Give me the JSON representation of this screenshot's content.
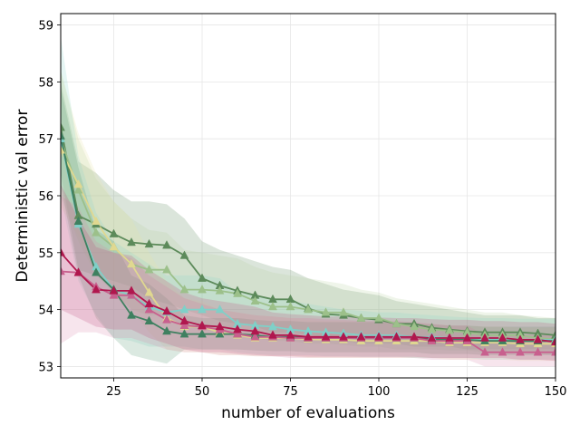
{
  "chart_data": {
    "type": "line",
    "xlabel": "number of evaluations",
    "ylabel": "Deterministic val error",
    "xlim": [
      10,
      150
    ],
    "ylim": [
      52.8,
      59.2
    ],
    "xticks": [
      25,
      50,
      75,
      100,
      125,
      150
    ],
    "yticks": [
      53,
      54,
      55,
      56,
      57,
      58,
      59
    ],
    "grid": true,
    "marker": "triangle",
    "x": [
      10,
      15,
      20,
      25,
      30,
      35,
      40,
      45,
      50,
      55,
      60,
      65,
      70,
      75,
      80,
      85,
      90,
      95,
      100,
      105,
      110,
      115,
      120,
      125,
      130,
      135,
      140,
      145,
      150
    ],
    "series": [
      {
        "name": "series-dark-green",
        "color": "#5c8a5a",
        "band_color": "#5c8a5a",
        "values": [
          57.2,
          55.65,
          55.5,
          55.33,
          55.18,
          55.15,
          55.13,
          54.95,
          54.55,
          54.42,
          54.33,
          54.25,
          54.18,
          54.18,
          54.02,
          53.92,
          53.9,
          53.85,
          53.82,
          53.75,
          53.75,
          53.68,
          53.65,
          53.62,
          53.6,
          53.6,
          53.6,
          53.58,
          53.55
        ],
        "lower": [
          56.4,
          54.7,
          54.6,
          54.5,
          54.4,
          54.2,
          54.1,
          54.0,
          53.9,
          53.8,
          53.75,
          53.7,
          53.6,
          53.6,
          53.55,
          53.5,
          53.45,
          53.4,
          53.4,
          53.4,
          53.35,
          53.35,
          53.35,
          53.3,
          53.3,
          53.3,
          53.3,
          53.3,
          53.3
        ],
        "upper": [
          58.0,
          56.6,
          56.4,
          56.1,
          55.9,
          55.9,
          55.85,
          55.6,
          55.2,
          55.05,
          54.95,
          54.85,
          54.75,
          54.7,
          54.55,
          54.45,
          54.35,
          54.3,
          54.25,
          54.15,
          54.1,
          54.05,
          54.0,
          53.95,
          53.9,
          53.9,
          53.9,
          53.85,
          53.85
        ]
      },
      {
        "name": "series-light-green",
        "color": "#9cc08a",
        "band_color": "#b5d39f",
        "values": [
          57.0,
          56.1,
          55.35,
          55.1,
          54.8,
          54.7,
          54.7,
          54.35,
          54.35,
          54.33,
          54.28,
          54.15,
          54.05,
          54.05,
          54.0,
          53.95,
          53.95,
          53.85,
          53.85,
          53.75,
          53.7,
          53.65,
          53.63,
          53.6,
          53.55,
          53.55,
          53.55,
          53.5,
          53.48
        ],
        "lower": [
          56.0,
          55.2,
          54.6,
          54.3,
          54.0,
          53.9,
          53.9,
          53.7,
          53.65,
          53.6,
          53.55,
          53.5,
          53.45,
          53.45,
          53.4,
          53.4,
          53.38,
          53.35,
          53.35,
          53.3,
          53.3,
          53.3,
          53.28,
          53.28,
          53.25,
          53.25,
          53.25,
          53.22,
          53.2
        ],
        "upper": [
          58.2,
          57.0,
          56.3,
          55.9,
          55.6,
          55.4,
          55.35,
          55.05,
          55.0,
          54.95,
          54.9,
          54.75,
          54.65,
          54.6,
          54.55,
          54.5,
          54.45,
          54.35,
          54.3,
          54.2,
          54.15,
          54.1,
          54.05,
          54.0,
          53.95,
          53.95,
          53.9,
          53.88,
          53.85
        ]
      },
      {
        "name": "series-cream",
        "color": "#e0d890",
        "band_color": "#e8e2a8",
        "values": [
          56.8,
          56.2,
          55.55,
          55.1,
          54.8,
          54.3,
          53.85,
          53.7,
          53.7,
          53.6,
          53.55,
          53.5,
          53.5,
          53.5,
          53.48,
          53.47,
          53.47,
          53.45,
          53.45,
          53.45,
          53.45,
          53.45,
          53.42,
          53.42,
          53.42,
          53.42,
          53.4,
          53.4,
          53.4
        ],
        "lower": [
          55.8,
          55.3,
          54.7,
          54.3,
          54.0,
          53.6,
          53.3,
          53.25,
          53.25,
          53.2,
          53.2,
          53.18,
          53.18,
          53.18,
          53.15,
          53.15,
          53.15,
          53.15,
          53.15,
          53.15,
          53.15,
          53.15,
          53.12,
          53.12,
          53.12,
          53.12,
          53.1,
          53.1,
          53.1
        ],
        "upper": [
          58.2,
          57.1,
          56.4,
          55.9,
          55.6,
          55.0,
          54.5,
          54.2,
          54.15,
          54.0,
          53.95,
          53.9,
          53.88,
          53.85,
          53.82,
          53.8,
          53.8,
          53.78,
          53.78,
          53.76,
          53.75,
          53.75,
          53.72,
          53.72,
          53.7,
          53.7,
          53.68,
          53.68,
          53.68
        ]
      },
      {
        "name": "series-teal",
        "color": "#7fd0c8",
        "band_color": "#8fd6cc",
        "values": [
          57.0,
          55.5,
          54.75,
          54.35,
          54.25,
          54.05,
          53.95,
          54.0,
          54.0,
          54.0,
          53.75,
          53.72,
          53.7,
          53.65,
          53.62,
          53.6,
          53.58,
          53.55,
          53.55,
          53.55,
          53.52,
          53.52,
          53.5,
          53.5,
          53.48,
          53.48,
          53.47,
          53.47,
          53.47
        ],
        "lower": [
          56.0,
          54.5,
          53.9,
          53.5,
          53.45,
          53.35,
          53.35,
          53.35,
          53.3,
          53.3,
          53.25,
          53.22,
          53.2,
          53.2,
          53.2,
          53.18,
          53.18,
          53.17,
          53.17,
          53.17,
          53.15,
          53.15,
          53.15,
          53.15,
          53.12,
          53.12,
          53.12,
          53.12,
          53.12
        ],
        "upper": [
          58.8,
          56.7,
          55.7,
          55.2,
          55.0,
          54.8,
          54.6,
          54.6,
          54.6,
          54.55,
          54.3,
          54.25,
          54.2,
          54.15,
          54.1,
          54.05,
          54.0,
          53.98,
          53.95,
          53.95,
          53.92,
          53.9,
          53.88,
          53.86,
          53.85,
          53.85,
          53.84,
          53.84,
          53.84
        ]
      },
      {
        "name": "series-green-teal",
        "color": "#3f8060",
        "band_color": "#5a9a78",
        "values": [
          57.05,
          55.55,
          54.65,
          54.35,
          53.9,
          53.8,
          53.62,
          53.57,
          53.57,
          53.57,
          53.57,
          53.55,
          53.52,
          53.52,
          53.5,
          53.5,
          53.5,
          53.5,
          53.5,
          53.5,
          53.5,
          53.47,
          53.47,
          53.47,
          53.45,
          53.45,
          53.45,
          53.45,
          53.45
        ],
        "lower": [
          56.2,
          54.6,
          53.85,
          53.5,
          53.2,
          53.12,
          53.05,
          53.3,
          53.3,
          53.3,
          53.3,
          53.28,
          53.27,
          53.27,
          53.25,
          53.25,
          53.25,
          53.25,
          53.25,
          53.25,
          53.25,
          53.22,
          53.22,
          53.22,
          53.2,
          53.2,
          53.2,
          53.2,
          53.2
        ],
        "upper": [
          57.9,
          56.5,
          55.4,
          55.2,
          54.6,
          54.45,
          54.2,
          53.9,
          53.85,
          53.85,
          53.85,
          53.82,
          53.8,
          53.8,
          53.78,
          53.78,
          53.78,
          53.78,
          53.78,
          53.78,
          53.76,
          53.74,
          53.72,
          53.72,
          53.7,
          53.7,
          53.7,
          53.7,
          53.7
        ]
      },
      {
        "name": "series-pink",
        "color": "#c8608e",
        "band_color": "#d98aac",
        "values": [
          54.67,
          54.65,
          54.4,
          54.25,
          54.25,
          54.0,
          53.82,
          53.72,
          53.7,
          53.65,
          53.57,
          53.52,
          53.52,
          53.5,
          53.5,
          53.5,
          53.5,
          53.5,
          53.5,
          53.5,
          53.5,
          53.45,
          53.45,
          53.45,
          53.25,
          53.25,
          53.25,
          53.25,
          53.25
        ],
        "lower": [
          53.4,
          53.6,
          53.6,
          53.5,
          53.5,
          53.4,
          53.3,
          53.25,
          53.25,
          53.2,
          53.2,
          53.18,
          53.18,
          53.15,
          53.15,
          53.15,
          53.15,
          53.15,
          53.15,
          53.15,
          53.15,
          53.12,
          53.12,
          53.12,
          53.0,
          53.0,
          53.0,
          53.0,
          53.0
        ],
        "upper": [
          56.0,
          55.8,
          55.2,
          55.0,
          54.9,
          54.6,
          54.4,
          54.2,
          54.1,
          54.0,
          53.95,
          53.9,
          53.88,
          53.85,
          53.85,
          53.83,
          53.82,
          53.8,
          53.8,
          53.8,
          53.78,
          53.75,
          53.72,
          53.72,
          53.55,
          53.55,
          53.55,
          53.55,
          53.55
        ]
      },
      {
        "name": "series-crimson",
        "color": "#b0174e",
        "band_color": "#c04a7a",
        "values": [
          55.0,
          54.65,
          54.35,
          54.33,
          54.33,
          54.1,
          53.97,
          53.8,
          53.72,
          53.7,
          53.65,
          53.62,
          53.55,
          53.55,
          53.52,
          53.52,
          53.52,
          53.52,
          53.52,
          53.52,
          53.52,
          53.5,
          53.5,
          53.5,
          53.5,
          53.5,
          53.47,
          53.47,
          53.43
        ],
        "lower": [
          54.0,
          53.85,
          53.7,
          53.65,
          53.65,
          53.5,
          53.4,
          53.3,
          53.25,
          53.25,
          53.22,
          53.2,
          53.18,
          53.18,
          53.17,
          53.17,
          53.17,
          53.17,
          53.17,
          53.17,
          53.17,
          53.15,
          53.15,
          53.15,
          53.15,
          53.15,
          53.12,
          53.12,
          53.1
        ],
        "upper": [
          56.2,
          55.6,
          55.1,
          55.0,
          54.95,
          54.7,
          54.5,
          54.3,
          54.2,
          54.15,
          54.1,
          54.05,
          53.95,
          53.92,
          53.9,
          53.88,
          53.88,
          53.86,
          53.86,
          53.85,
          53.85,
          53.83,
          53.82,
          53.82,
          53.8,
          53.8,
          53.78,
          53.78,
          53.75
        ]
      }
    ]
  }
}
